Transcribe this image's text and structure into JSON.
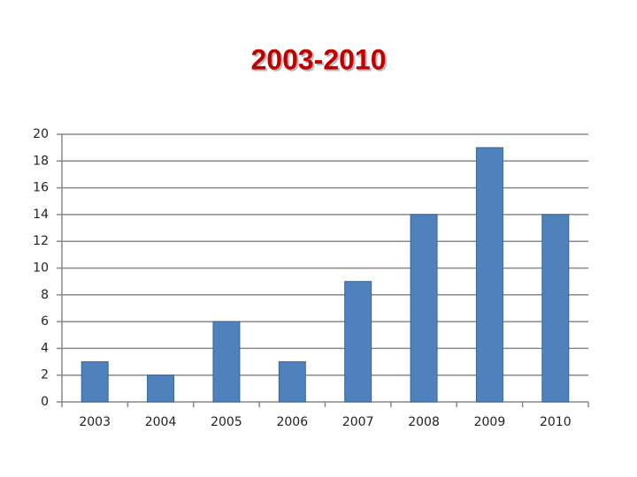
{
  "chart_data": {
    "type": "bar",
    "title": "2003-2010",
    "categories": [
      "2003",
      "2004",
      "2005",
      "2006",
      "2007",
      "2008",
      "2009",
      "2010"
    ],
    "values": [
      3,
      2,
      6,
      3,
      9,
      14,
      19,
      14
    ],
    "color": "#4f81bd",
    "ylim": [
      0,
      20
    ],
    "yticks": [
      0,
      2,
      4,
      6,
      8,
      10,
      12,
      14,
      16,
      18,
      20
    ],
    "grid": true
  }
}
